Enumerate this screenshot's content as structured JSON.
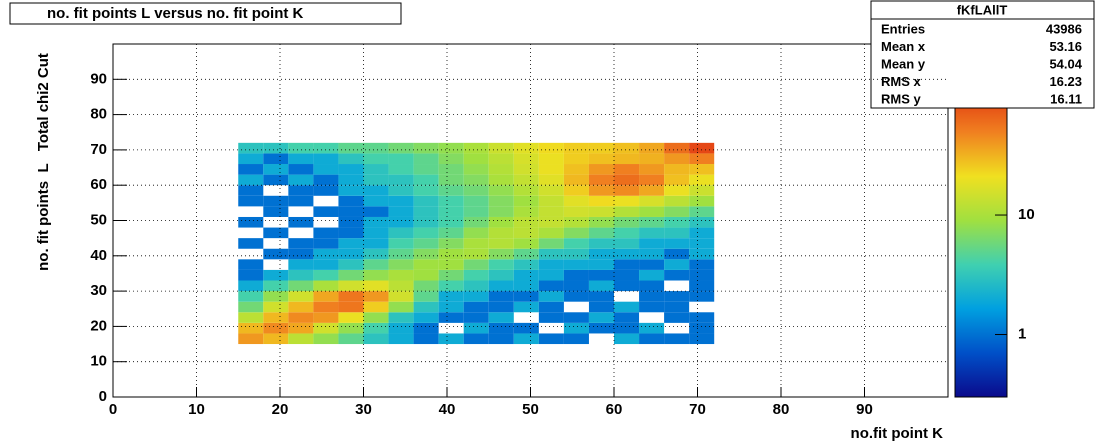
{
  "chart_data": {
    "type": "hist2d",
    "title": "no. fit points L versus no. fit point K",
    "x_label": "no.fit point K",
    "y_label": "no. fit points  L   Total chi2 Cut",
    "xlim": [
      0,
      100
    ],
    "ylim": [
      0,
      100
    ],
    "xticks": [
      0,
      10,
      20,
      30,
      40,
      50,
      60,
      70,
      80,
      90
    ],
    "yticks": [
      0,
      10,
      20,
      30,
      40,
      50,
      60,
      70,
      80,
      90
    ],
    "grid": true,
    "z_log": true,
    "zlim": [
      0.3,
      270
    ],
    "zticks": [
      1,
      10
    ],
    "palette": [
      "#0a0a8c",
      "#0050c8",
      "#00a0e0",
      "#40d0b0",
      "#a0e040",
      "#f0e020",
      "#f08020",
      "#e03010",
      "#800000"
    ],
    "xbins": [
      15,
      18,
      21,
      24,
      27,
      30,
      33,
      36,
      39,
      42,
      45,
      48,
      51,
      54,
      57,
      60,
      63,
      66,
      69,
      72
    ],
    "ybins": [
      15,
      18,
      21,
      24,
      27,
      30,
      33,
      36,
      39,
      42,
      45,
      48,
      51,
      54,
      57,
      60,
      63,
      66,
      69,
      72
    ],
    "z": [
      [
        40,
        30,
        12,
        8,
        5,
        3,
        2,
        1,
        2,
        1,
        1,
        2,
        1,
        1,
        0,
        2,
        1,
        1,
        1
      ],
      [
        30,
        45,
        35,
        15,
        8,
        4,
        2,
        1,
        0,
        2,
        1,
        1,
        0,
        2,
        1,
        1,
        2,
        0,
        1
      ],
      [
        12,
        30,
        45,
        40,
        20,
        8,
        3,
        2,
        1,
        1,
        2,
        0,
        1,
        1,
        2,
        1,
        0,
        1,
        1
      ],
      [
        6,
        15,
        30,
        50,
        55,
        25,
        8,
        3,
        2,
        1,
        1,
        2,
        1,
        0,
        1,
        2,
        1,
        1,
        0
      ],
      [
        4,
        8,
        15,
        35,
        55,
        40,
        15,
        5,
        2,
        2,
        1,
        1,
        2,
        1,
        1,
        0,
        1,
        1,
        1
      ],
      [
        2,
        4,
        6,
        10,
        15,
        18,
        12,
        6,
        4,
        3,
        2,
        2,
        1,
        1,
        2,
        1,
        1,
        0,
        1
      ],
      [
        1,
        2,
        3,
        4,
        6,
        8,
        10,
        9,
        6,
        4,
        3,
        2,
        2,
        1,
        1,
        1,
        2,
        1,
        1
      ],
      [
        1,
        0,
        2,
        2,
        3,
        5,
        7,
        9,
        9,
        6,
        4,
        3,
        2,
        2,
        2,
        1,
        1,
        2,
        1
      ],
      [
        0,
        1,
        1,
        2,
        2,
        3,
        5,
        7,
        9,
        10,
        7,
        5,
        3,
        3,
        2,
        2,
        2,
        1,
        2
      ],
      [
        1,
        0,
        1,
        1,
        2,
        2,
        4,
        5,
        7,
        10,
        11,
        9,
        6,
        4,
        3,
        3,
        2,
        2,
        2
      ],
      [
        0,
        1,
        0,
        1,
        1,
        2,
        3,
        4,
        5,
        8,
        11,
        12,
        10,
        7,
        5,
        4,
        3,
        3,
        2
      ],
      [
        1,
        0,
        1,
        0,
        1,
        2,
        2,
        3,
        4,
        6,
        9,
        12,
        13,
        11,
        8,
        6,
        5,
        4,
        3
      ],
      [
        0,
        1,
        0,
        1,
        1,
        1,
        2,
        3,
        4,
        5,
        7,
        10,
        13,
        15,
        14,
        11,
        9,
        7,
        5
      ],
      [
        1,
        1,
        1,
        0,
        1,
        2,
        2,
        3,
        4,
        5,
        7,
        9,
        13,
        18,
        22,
        20,
        16,
        12,
        9
      ],
      [
        1,
        0,
        1,
        1,
        2,
        2,
        3,
        4,
        5,
        6,
        8,
        11,
        15,
        25,
        40,
        45,
        35,
        20,
        14
      ],
      [
        2,
        1,
        2,
        1,
        2,
        3,
        3,
        4,
        6,
        7,
        10,
        13,
        18,
        30,
        50,
        60,
        50,
        28,
        20
      ],
      [
        1,
        2,
        1,
        2,
        2,
        3,
        4,
        5,
        6,
        8,
        11,
        15,
        20,
        28,
        40,
        50,
        40,
        30,
        28
      ],
      [
        2,
        1,
        2,
        2,
        3,
        4,
        4,
        5,
        7,
        9,
        12,
        16,
        20,
        25,
        28,
        30,
        32,
        40,
        50
      ],
      [
        3,
        3,
        4,
        4,
        5,
        5,
        6,
        7,
        8,
        10,
        14,
        18,
        22,
        25,
        25,
        28,
        35,
        60,
        90
      ]
    ],
    "stats": {
      "title": "fKfLAllT",
      "labels": [
        "Entries",
        "Mean x",
        "Mean y",
        "RMS x",
        "RMS y"
      ],
      "values": [
        43986,
        53.16,
        54.04,
        16.23,
        16.11
      ]
    }
  }
}
